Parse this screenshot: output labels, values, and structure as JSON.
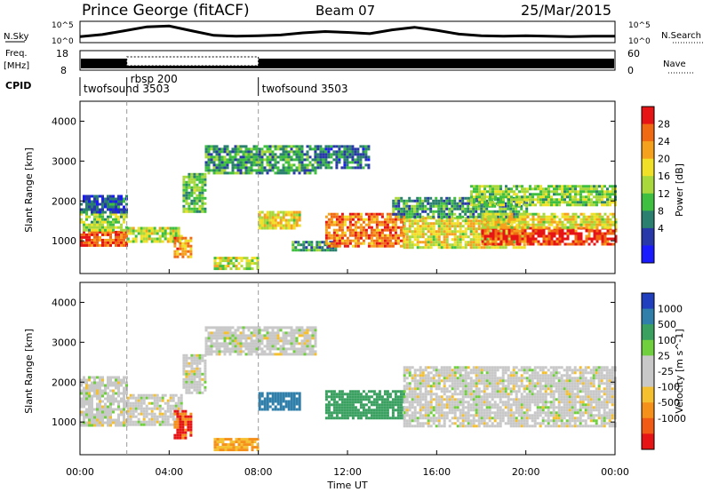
{
  "header": {
    "station": "Prince George (fitACF)",
    "beam": "Beam 07",
    "date": "25/Mar/2015"
  },
  "noise_panel": {
    "left_label": "N.Sky",
    "right_label": "N.Search",
    "left_ticks": [
      "10^5",
      "10^0"
    ],
    "right_ticks": [
      "10^5",
      "10^0"
    ]
  },
  "freq_panel": {
    "left_label_top": "Freq.",
    "left_label_bottom": "[MHz]",
    "right_label": "Nave",
    "left_ticks": [
      "18",
      "8"
    ],
    "right_ticks": [
      "60",
      "0"
    ]
  },
  "cpid_panel": {
    "label": "CPID",
    "segments": [
      {
        "text": "twofsound 3503",
        "start_hour": 0
      },
      {
        "text": "rbsp 200",
        "start_hour": 2.1
      },
      {
        "text": "twofsound 3503",
        "start_hour": 8.0
      }
    ]
  },
  "x_axis": {
    "label": "Time UT",
    "ticks": [
      "00:00",
      "04:00",
      "08:00",
      "12:00",
      "16:00",
      "20:00",
      "00:00"
    ]
  },
  "y_axis": {
    "label": "Slant Range [km]",
    "ticks": [
      "1000",
      "2000",
      "3000",
      "4000"
    ]
  },
  "power_colorbar": {
    "label": "Power [dB]",
    "ticks": [
      "4",
      "8",
      "12",
      "16",
      "20",
      "24",
      "28"
    ],
    "colors": [
      "#1a1aff",
      "#2838a8",
      "#2a7f6e",
      "#3fbf3f",
      "#a8d83c",
      "#f0e028",
      "#f5a11e",
      "#f06a14",
      "#e61414"
    ]
  },
  "velocity_colorbar": {
    "label": "Velocity [m s^-1]",
    "ticks": [
      "1000",
      "500",
      "100",
      "25",
      "-25",
      "-100",
      "-500",
      "-1000"
    ],
    "colors": [
      "#1f3fbf",
      "#2f7faa",
      "#3aa060",
      "#6fcf3c",
      "#c8c8c8",
      "#c8c8c8",
      "#f5c030",
      "#f5901a",
      "#f05a14",
      "#e61414"
    ]
  },
  "chart_data": {
    "type": "heatmap",
    "x_range_hours": [
      0,
      24
    ],
    "y_range_km": [
      180,
      4500
    ],
    "power_bands": [
      {
        "t0": 0.0,
        "t1": 2.1,
        "r0": 900,
        "r1": 1250,
        "value_db": 26
      },
      {
        "t0": 0.0,
        "t1": 2.1,
        "r0": 1250,
        "r1": 1700,
        "value_db": 14
      },
      {
        "t0": 0.0,
        "t1": 2.1,
        "r0": 1700,
        "r1": 2150,
        "value_db": 6
      },
      {
        "t0": 2.1,
        "t1": 4.6,
        "r0": 950,
        "r1": 1350,
        "value_db": 16
      },
      {
        "t0": 4.2,
        "t1": 5.0,
        "r0": 600,
        "r1": 1100,
        "value_db": 22
      },
      {
        "t0": 4.6,
        "t1": 5.6,
        "r0": 1700,
        "r1": 2700,
        "value_db": 12
      },
      {
        "t0": 5.6,
        "t1": 10.6,
        "r0": 2700,
        "r1": 3400,
        "value_db": 10
      },
      {
        "t0": 6.0,
        "t1": 8.0,
        "r0": 300,
        "r1": 600,
        "value_db": 16
      },
      {
        "t0": 8.0,
        "t1": 9.8,
        "r0": 1300,
        "r1": 1750,
        "value_db": 18
      },
      {
        "t0": 9.5,
        "t1": 11.5,
        "r0": 750,
        "r1": 1000,
        "value_db": 10
      },
      {
        "t0": 10.5,
        "t1": 13.0,
        "r0": 2800,
        "r1": 3400,
        "value_db": 8
      },
      {
        "t0": 11.0,
        "t1": 14.5,
        "r0": 850,
        "r1": 1700,
        "value_db": 24
      },
      {
        "t0": 14.5,
        "t1": 20.0,
        "r0": 850,
        "r1": 1600,
        "value_db": 18
      },
      {
        "t0": 14.0,
        "t1": 20.0,
        "r0": 1600,
        "r1": 2100,
        "value_db": 10
      },
      {
        "t0": 17.5,
        "t1": 24.0,
        "r0": 1900,
        "r1": 2400,
        "value_db": 14
      },
      {
        "t0": 18.0,
        "t1": 24.0,
        "r0": 900,
        "r1": 1350,
        "value_db": 27
      },
      {
        "t0": 18.0,
        "t1": 24.0,
        "r0": 1350,
        "r1": 1700,
        "value_db": 18
      }
    ],
    "velocity_bands": [
      {
        "t0": 0.0,
        "t1": 2.1,
        "r0": 900,
        "r1": 2150,
        "value_ms": 0
      },
      {
        "t0": 2.1,
        "t1": 4.5,
        "r0": 950,
        "r1": 1700,
        "value_ms": 0
      },
      {
        "t0": 4.2,
        "t1": 5.0,
        "r0": 600,
        "r1": 1300,
        "value_ms": -500
      },
      {
        "t0": 4.6,
        "t1": 5.6,
        "r0": 1700,
        "r1": 2700,
        "value_ms": 0
      },
      {
        "t0": 5.6,
        "t1": 10.6,
        "r0": 2700,
        "r1": 3400,
        "value_ms": 0
      },
      {
        "t0": 6.0,
        "t1": 8.0,
        "r0": 300,
        "r1": 600,
        "value_ms": -100
      },
      {
        "t0": 8.0,
        "t1": 9.8,
        "r0": 1300,
        "r1": 1750,
        "value_ms": 500
      },
      {
        "t0": 11.0,
        "t1": 14.5,
        "r0": 1100,
        "r1": 1800,
        "value_ms": 100
      },
      {
        "t0": 14.5,
        "t1": 24.0,
        "r0": 900,
        "r1": 2400,
        "value_ms": 0
      }
    ],
    "noise_sky_log": [
      {
        "t": 0,
        "v": 1.4
      },
      {
        "t": 1,
        "v": 1.9
      },
      {
        "t": 2,
        "v": 2.8
      },
      {
        "t": 3,
        "v": 3.7
      },
      {
        "t": 4,
        "v": 3.9
      },
      {
        "t": 5,
        "v": 2.8
      },
      {
        "t": 6,
        "v": 1.7
      },
      {
        "t": 7,
        "v": 1.5
      },
      {
        "t": 8,
        "v": 1.6
      },
      {
        "t": 9,
        "v": 1.8
      },
      {
        "t": 10,
        "v": 2.3
      },
      {
        "t": 11,
        "v": 2.6
      },
      {
        "t": 12,
        "v": 2.4
      },
      {
        "t": 13,
        "v": 2.1
      },
      {
        "t": 14,
        "v": 3.0
      },
      {
        "t": 15,
        "v": 3.6
      },
      {
        "t": 16,
        "v": 2.9
      },
      {
        "t": 17,
        "v": 2.0
      },
      {
        "t": 18,
        "v": 1.6
      },
      {
        "t": 19,
        "v": 1.5
      },
      {
        "t": 20,
        "v": 1.6
      },
      {
        "t": 21,
        "v": 1.5
      },
      {
        "t": 22,
        "v": 1.4
      },
      {
        "t": 23,
        "v": 1.5
      },
      {
        "t": 24,
        "v": 1.5
      }
    ],
    "nave_dotted_range_hours": [
      2.1,
      8.0
    ],
    "dashed_markers_hours": [
      2.1,
      8.0
    ]
  }
}
